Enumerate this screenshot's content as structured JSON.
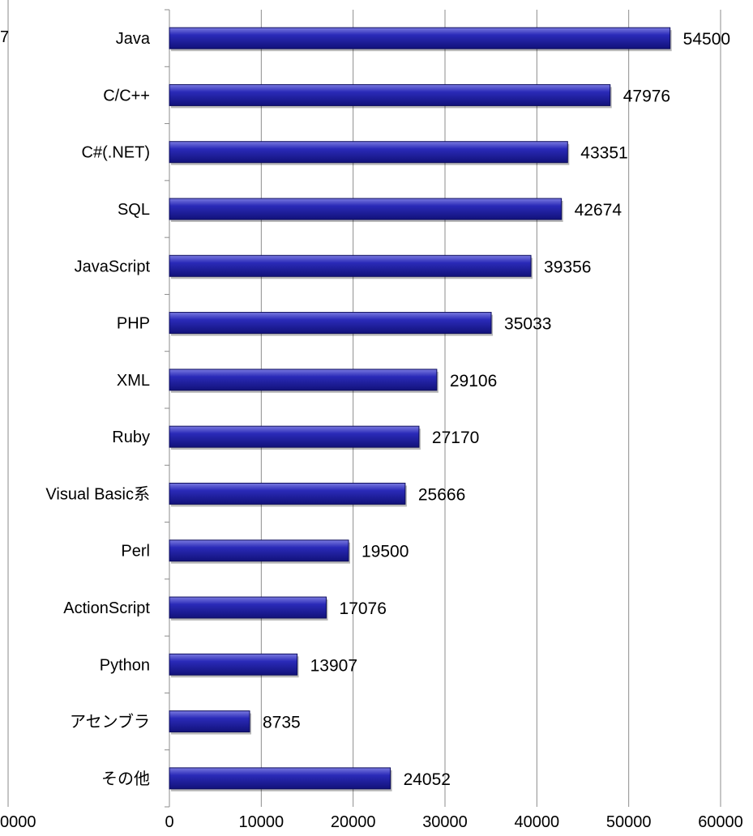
{
  "chart_data": {
    "type": "bar",
    "orientation": "horizontal",
    "categories": [
      "Java",
      "C/C++",
      "C#(.NET)",
      "SQL",
      "JavaScript",
      "PHP",
      "XML",
      "Ruby",
      "Visual Basic系",
      "Perl",
      "ActionScript",
      "Python",
      "アセンブラ",
      "その他"
    ],
    "values": [
      54500,
      47976,
      43351,
      42674,
      39356,
      35033,
      29106,
      27170,
      25666,
      19500,
      17076,
      13907,
      8735,
      24052
    ],
    "xlim": [
      0,
      60000
    ],
    "x_ticks": [
      "0",
      "10000",
      "20000",
      "30000",
      "40000",
      "50000",
      "60000"
    ],
    "data_labels": true,
    "grid": "vertical",
    "bar_color": "#2222aa",
    "partial_left_panel": {
      "fragment_label": "7",
      "fragment_tick": "0000"
    }
  }
}
